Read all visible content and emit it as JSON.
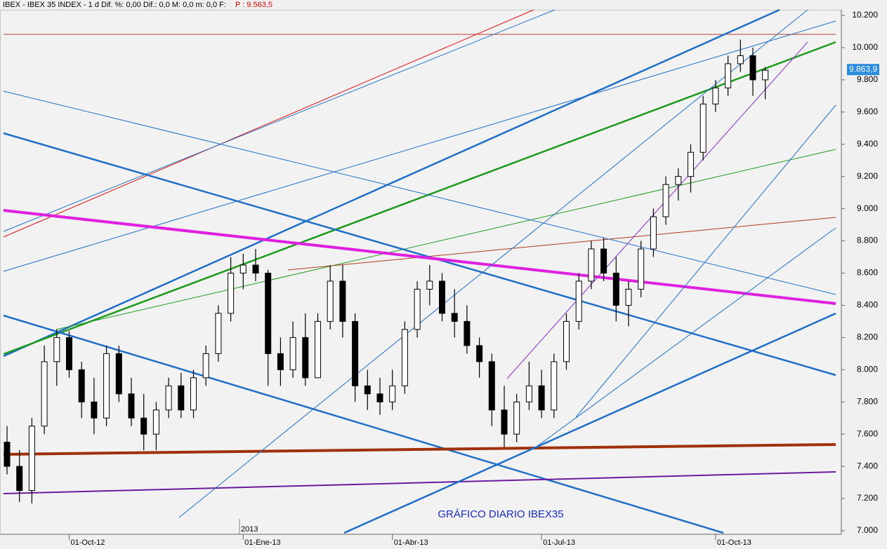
{
  "chart_data": {
    "type": "candlestick",
    "title": "IBEX - IBEX 35 INDEX - 1 d Dif. %: 0,00 Dif.: 0,0 M: 0,0 m: 0,0 F:",
    "subtitle": "P : 9.563,5",
    "annotation": "GRÁFICO DIARIO IBEX35",
    "year_label": "2013",
    "categories": [
      null,
      null,
      null,
      null,
      null,
      "01-Oct-12",
      null,
      null,
      null,
      null,
      null,
      null,
      null,
      null,
      null,
      null,
      null,
      null,
      null,
      "01-Ene-13",
      null,
      null,
      null,
      null,
      null,
      null,
      null,
      null,
      null,
      null,
      null,
      "01-Abr-13",
      null,
      null,
      null,
      null,
      null,
      null,
      null,
      null,
      null,
      null,
      null,
      "01-Jul-13",
      null,
      null,
      null,
      null,
      null,
      null,
      null,
      null,
      null,
      null,
      null,
      null,
      null,
      "01-Oct-13",
      null,
      null,
      null,
      null
    ],
    "open": [
      7550,
      7400,
      7250,
      7650,
      8050,
      8200,
      8000,
      7800,
      7700,
      8100,
      7850,
      7700,
      7600,
      7750,
      7900,
      7750,
      7950,
      8100,
      8350,
      8600,
      8650,
      8600,
      8100,
      8000,
      8200,
      7950,
      8300,
      8550,
      8300,
      7900,
      7850,
      7800,
      7900,
      8250,
      8500,
      8550,
      8350,
      8300,
      8150,
      8050,
      7750,
      7600,
      7800,
      7900,
      7750,
      8050,
      8300,
      8550,
      8750,
      8600,
      8400,
      8500,
      8750,
      8950,
      9150,
      9200,
      9350,
      9650,
      9750,
      9900,
      9950,
      9800
    ],
    "high": [
      7650,
      7500,
      7700,
      8150,
      8250,
      8240,
      8050,
      7950,
      8150,
      8150,
      7950,
      7850,
      7800,
      7950,
      7980,
      8000,
      8150,
      8400,
      8700,
      8720,
      8750,
      8620,
      8200,
      8300,
      8350,
      8350,
      8650,
      8650,
      8350,
      8000,
      7950,
      8000,
      8300,
      8550,
      8650,
      8600,
      8500,
      8400,
      8200,
      8100,
      7900,
      7850,
      8050,
      8000,
      8100,
      8350,
      8600,
      8800,
      8820,
      8700,
      8550,
      8800,
      9000,
      9200,
      9250,
      9400,
      9700,
      9800,
      9950,
      10050,
      10000,
      9880
    ],
    "low": [
      7350,
      7180,
      7170,
      7600,
      7900,
      7950,
      7700,
      7600,
      7650,
      7800,
      7650,
      7500,
      7500,
      7700,
      7700,
      7700,
      7900,
      8050,
      8300,
      8500,
      8550,
      7900,
      7900,
      7950,
      7900,
      7950,
      8250,
      8200,
      7800,
      7750,
      7720,
      7750,
      7850,
      8200,
      8400,
      8300,
      8200,
      8100,
      7950,
      7650,
      7520,
      7550,
      7750,
      7700,
      7700,
      8000,
      8250,
      8500,
      8550,
      8300,
      8270,
      8450,
      8700,
      8900,
      9050,
      9100,
      9300,
      9600,
      9700,
      9850,
      9700,
      9680
    ],
    "close": [
      7400,
      7250,
      7650,
      8050,
      8200,
      8000,
      7800,
      7700,
      8100,
      7850,
      7700,
      7600,
      7750,
      7900,
      7750,
      7950,
      8100,
      8350,
      8600,
      8650,
      8600,
      8100,
      8000,
      8200,
      7950,
      8300,
      8550,
      8300,
      7900,
      7850,
      7800,
      7900,
      8250,
      8500,
      8550,
      8350,
      8300,
      8150,
      8050,
      7750,
      7600,
      7800,
      7900,
      7750,
      8050,
      8300,
      8550,
      8750,
      8600,
      8400,
      8500,
      8750,
      8950,
      9150,
      9200,
      9350,
      9650,
      9750,
      9900,
      9950,
      9800,
      9860
    ],
    "ylim": [
      7000,
      10200
    ],
    "yticks": [
      {
        "value": 7000,
        "label": "7.000"
      },
      {
        "value": 7200,
        "label": "7.200"
      },
      {
        "value": 7400,
        "label": "7.400"
      },
      {
        "value": 7600,
        "label": "7.600"
      },
      {
        "value": 7800,
        "label": "7.800"
      },
      {
        "value": 8000,
        "label": "8.000"
      },
      {
        "value": 8200,
        "label": "8.200"
      },
      {
        "value": 8400,
        "label": "8.400"
      },
      {
        "value": 8600,
        "label": "8.600"
      },
      {
        "value": 8800,
        "label": "8.800"
      },
      {
        "value": 9000,
        "label": "9.000"
      },
      {
        "value": 9200,
        "label": "9.200"
      },
      {
        "value": 9400,
        "label": "9.400"
      },
      {
        "value": 9600,
        "label": "9.600"
      },
      {
        "value": 9800,
        "label": "9.800"
      },
      {
        "value": 10000,
        "label": "10.000"
      },
      {
        "value": 10200,
        "label": "10.200"
      }
    ],
    "last_price": {
      "value": 9863.9,
      "label": "9.863,9"
    }
  }
}
